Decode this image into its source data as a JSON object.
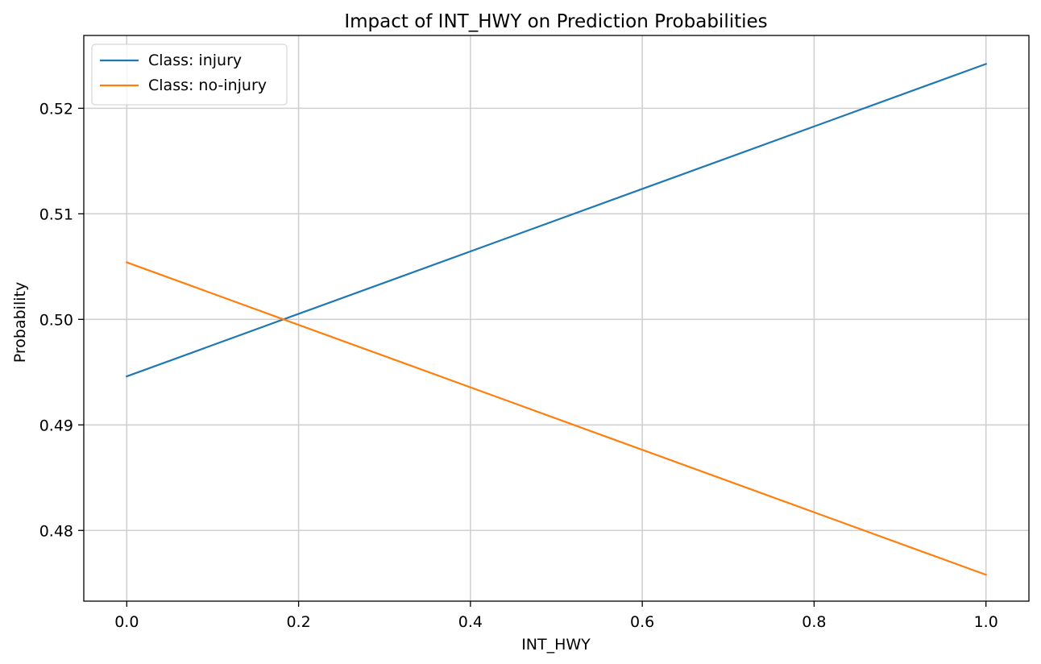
{
  "chart_data": {
    "type": "line",
    "title": "Impact of INT_HWY on Prediction Probabilities",
    "xlabel": "INT_HWY",
    "ylabel": "Probability",
    "xlim": [
      -0.05,
      1.05
    ],
    "ylim": [
      0.4733,
      0.5269
    ],
    "x_ticks": [
      0.0,
      0.2,
      0.4,
      0.6,
      0.8,
      1.0
    ],
    "x_tick_labels": [
      "0.0",
      "0.2",
      "0.4",
      "0.6",
      "0.8",
      "1.0"
    ],
    "y_ticks": [
      0.48,
      0.49,
      0.5,
      0.51,
      0.52
    ],
    "y_tick_labels": [
      "0.48",
      "0.49",
      "0.50",
      "0.51",
      "0.52"
    ],
    "grid": true,
    "legend_position": "top-left",
    "series": [
      {
        "name": "Class: injury",
        "color": "#1f77b4",
        "x": [
          0.0,
          1.0
        ],
        "y": [
          0.4946,
          0.5242
        ]
      },
      {
        "name": "Class: no-injury",
        "color": "#ff7f0e",
        "x": [
          0.0,
          1.0
        ],
        "y": [
          0.5054,
          0.4758
        ]
      }
    ]
  }
}
